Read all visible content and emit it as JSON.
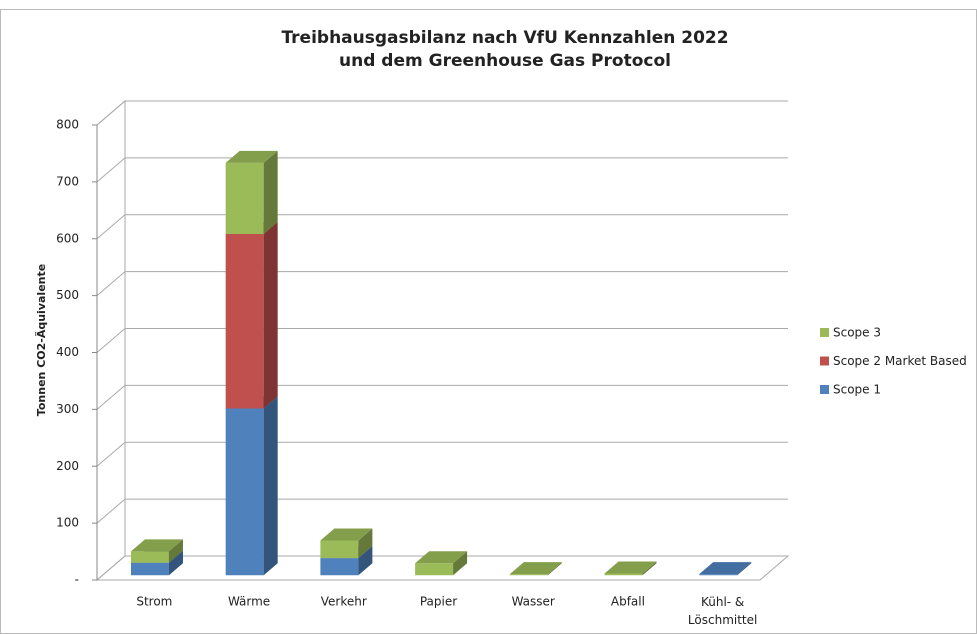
{
  "chart_data": {
    "type": "bar3d_stacked",
    "title": "Treibhausgasbilanz nach VfU Kennzahlen 2022\nund dem Greenhouse Gas Protocol",
    "y_label": "Tonnen CO2-Äquivalente",
    "categories": [
      "Strom",
      "Wärme",
      "Verkehr",
      "Papier",
      "Wasser",
      "Abfall",
      "Kühl- &\nLöschmittel"
    ],
    "series": [
      {
        "name": "Scope 1",
        "color": "#4f81bd",
        "values": [
          22,
          293,
          30,
          0,
          0,
          0,
          2
        ]
      },
      {
        "name": "Scope 2 Market Based",
        "color": "#c0504d",
        "values": [
          0,
          307,
          0,
          0,
          0,
          0,
          0
        ]
      },
      {
        "name": "Scope 3",
        "color": "#9bbb59",
        "values": [
          20,
          125,
          31,
          21,
          2,
          3,
          0
        ]
      }
    ],
    "ylim": [
      0,
      800
    ],
    "yticks": [
      {
        "value": 0,
        "label": "-"
      },
      100,
      200,
      300,
      400,
      500,
      600,
      700,
      800
    ],
    "grid": true,
    "legend": "right"
  }
}
